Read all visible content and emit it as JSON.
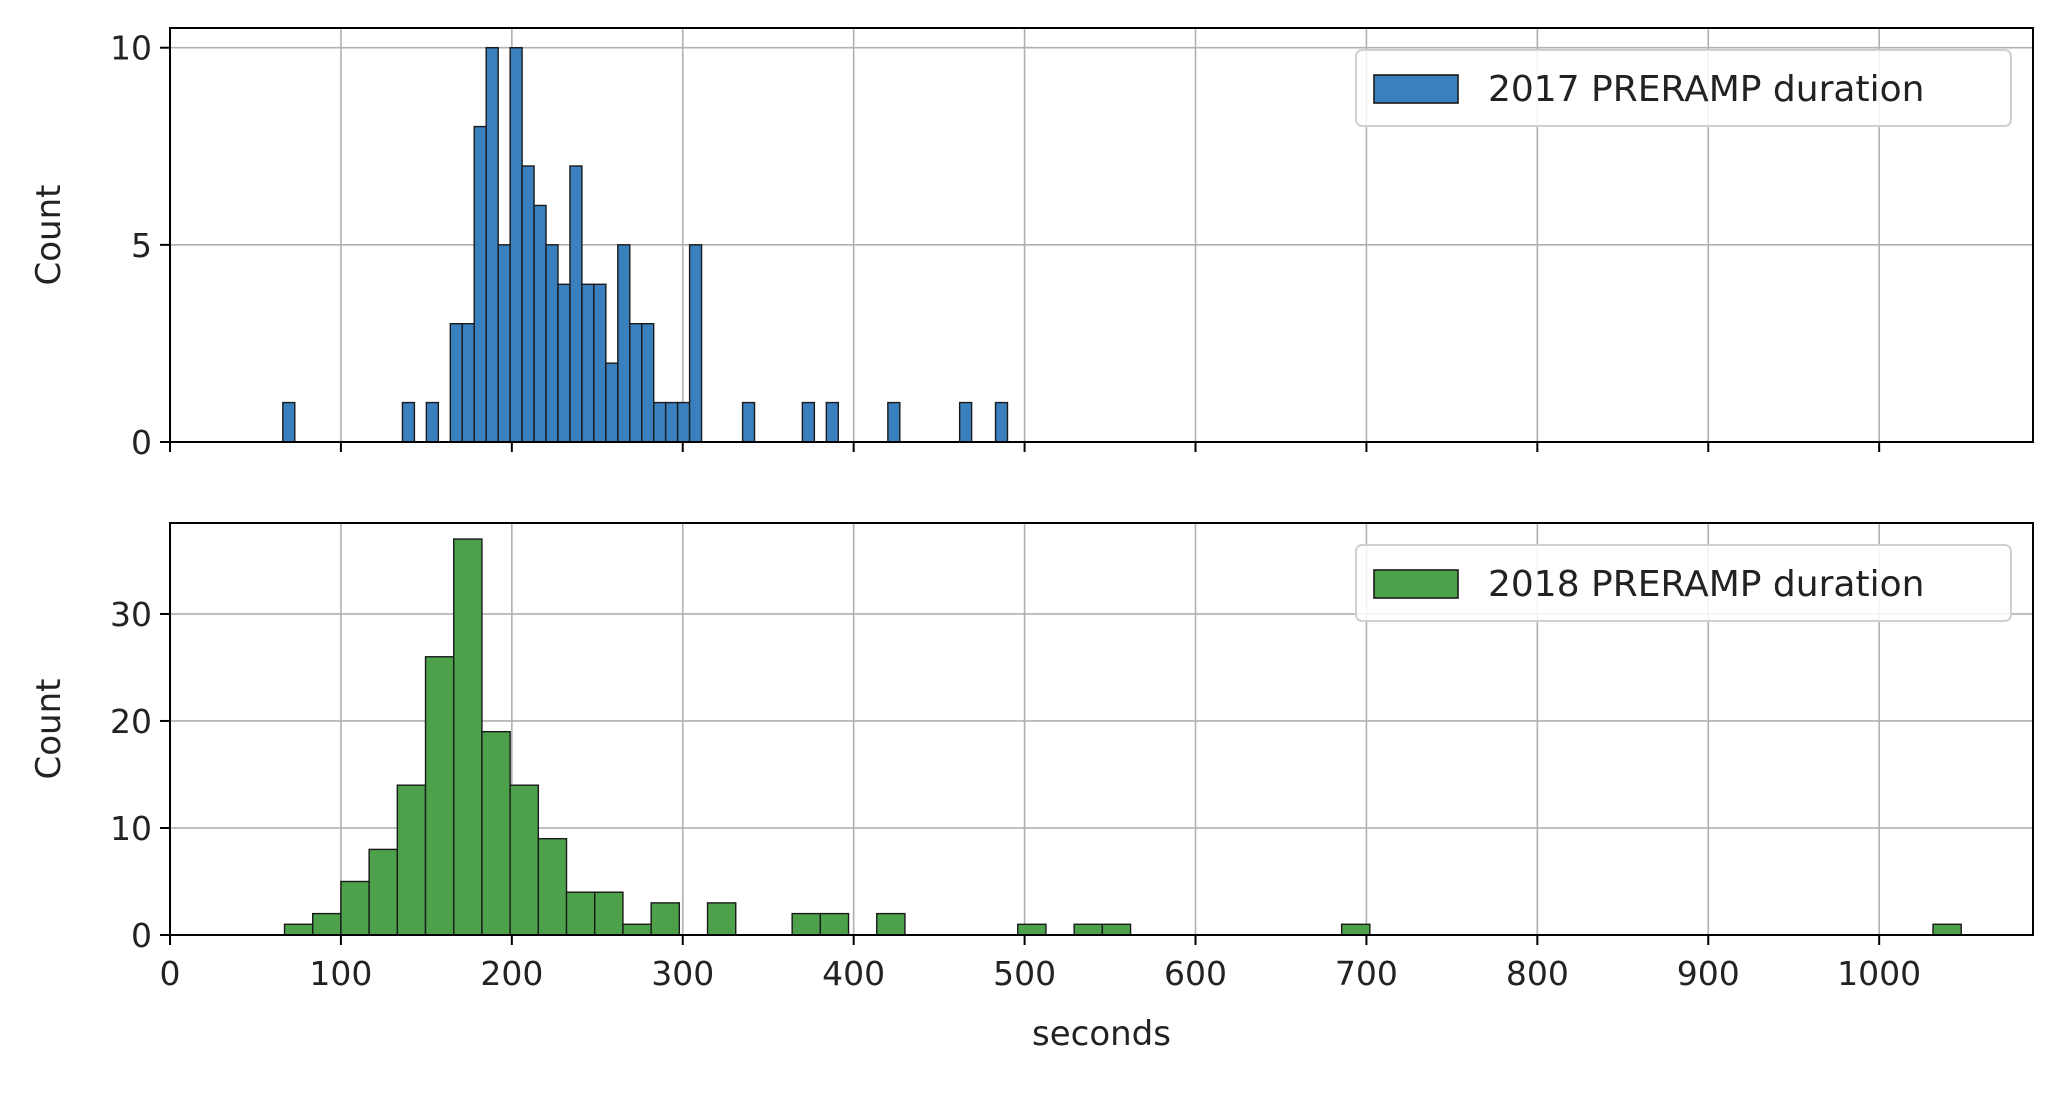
{
  "chart_data": [
    {
      "type": "bar",
      "subtype": "histogram",
      "ylabel": "Count",
      "xlabel": "",
      "xlim": [
        0,
        1090
      ],
      "ylim": [
        0,
        10.5
      ],
      "yticks": [
        0,
        5,
        10
      ],
      "xticks": [
        0,
        100,
        200,
        300,
        400,
        500,
        600,
        700,
        800,
        900,
        1000
      ],
      "xtick_labels_shown": false,
      "grid": true,
      "legend_position": "top-right",
      "bin_width": 7,
      "series": [
        {
          "name": "2017 PRERAMP duration",
          "color": "#3a80be",
          "bins": [
            {
              "x": 66,
              "count": 1
            },
            {
              "x": 136,
              "count": 1
            },
            {
              "x": 150,
              "count": 1
            },
            {
              "x": 164,
              "count": 3
            },
            {
              "x": 171,
              "count": 3
            },
            {
              "x": 178,
              "count": 8
            },
            {
              "x": 185,
              "count": 10
            },
            {
              "x": 192,
              "count": 5
            },
            {
              "x": 199,
              "count": 10
            },
            {
              "x": 206,
              "count": 7
            },
            {
              "x": 213,
              "count": 6
            },
            {
              "x": 220,
              "count": 5
            },
            {
              "x": 227,
              "count": 4
            },
            {
              "x": 234,
              "count": 7
            },
            {
              "x": 241,
              "count": 4
            },
            {
              "x": 248,
              "count": 4
            },
            {
              "x": 255,
              "count": 2
            },
            {
              "x": 262,
              "count": 5
            },
            {
              "x": 269,
              "count": 3
            },
            {
              "x": 276,
              "count": 3
            },
            {
              "x": 283,
              "count": 1
            },
            {
              "x": 290,
              "count": 1
            },
            {
              "x": 297,
              "count": 1
            },
            {
              "x": 304,
              "count": 5
            },
            {
              "x": 335,
              "count": 1
            },
            {
              "x": 370,
              "count": 1
            },
            {
              "x": 384,
              "count": 1
            },
            {
              "x": 420,
              "count": 1
            },
            {
              "x": 462,
              "count": 1
            },
            {
              "x": 483,
              "count": 1
            }
          ]
        }
      ]
    },
    {
      "type": "bar",
      "subtype": "histogram",
      "ylabel": "Count",
      "xlabel": "seconds",
      "xlim": [
        0,
        1090
      ],
      "ylim": [
        0,
        38.5
      ],
      "yticks": [
        0,
        10,
        20,
        30
      ],
      "xticks": [
        0,
        100,
        200,
        300,
        400,
        500,
        600,
        700,
        800,
        900,
        1000
      ],
      "xtick_labels_shown": true,
      "grid": true,
      "legend_position": "top-right",
      "bin_width": 16.5,
      "series": [
        {
          "name": "2018 PRERAMP duration",
          "color": "#4ca14a",
          "bins": [
            {
              "x": 67,
              "count": 1
            },
            {
              "x": 83.5,
              "count": 2
            },
            {
              "x": 100,
              "count": 5
            },
            {
              "x": 116.5,
              "count": 8
            },
            {
              "x": 133,
              "count": 14
            },
            {
              "x": 149.5,
              "count": 26
            },
            {
              "x": 166,
              "count": 37
            },
            {
              "x": 182.5,
              "count": 19
            },
            {
              "x": 199,
              "count": 14
            },
            {
              "x": 215.5,
              "count": 9
            },
            {
              "x": 232,
              "count": 4
            },
            {
              "x": 248.5,
              "count": 4
            },
            {
              "x": 265,
              "count": 1
            },
            {
              "x": 281.5,
              "count": 3
            },
            {
              "x": 314.5,
              "count": 3
            },
            {
              "x": 364,
              "count": 2
            },
            {
              "x": 380.5,
              "count": 2
            },
            {
              "x": 413.5,
              "count": 2
            },
            {
              "x": 496,
              "count": 1
            },
            {
              "x": 529,
              "count": 1
            },
            {
              "x": 545.5,
              "count": 1
            },
            {
              "x": 685.5,
              "count": 1
            },
            {
              "x": 1031.5,
              "count": 1
            }
          ]
        }
      ]
    }
  ]
}
